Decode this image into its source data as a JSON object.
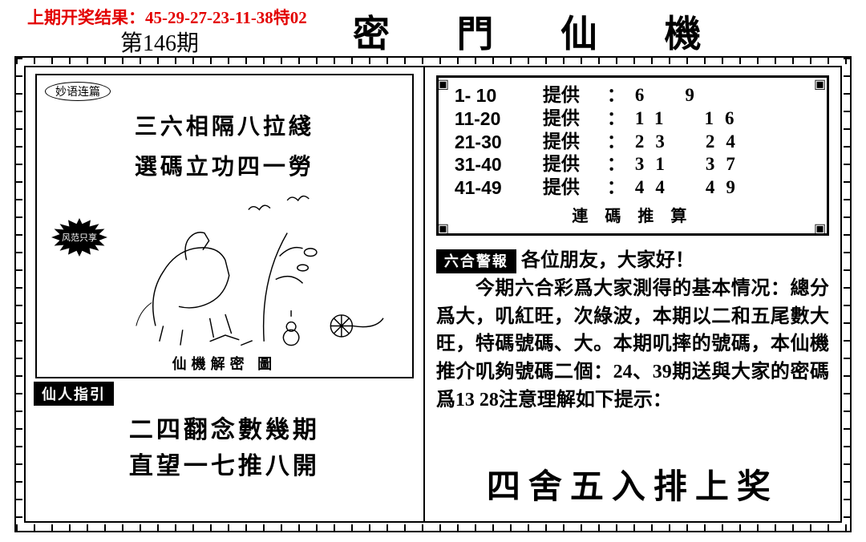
{
  "header": {
    "prev_result_label": "上期开奖结果：",
    "prev_result_numbers": "45-29-27-23-11-38特02",
    "issue": "第146期",
    "title": "密 門 仙 機"
  },
  "left": {
    "pill_label": "妙语连篇",
    "poem_line1": "三六相隔八拉綫",
    "poem_line2": "選碼立功四一勞",
    "starburst_label": "风范只享",
    "drawing_caption": "仙機解密 圖",
    "guide_tab": "仙人指引",
    "bottom_line1": "二四翻念數幾期",
    "bottom_line2": "直望一七推八開"
  },
  "right": {
    "table_provide_label": "提供",
    "rows": [
      {
        "range": "1- 10",
        "n1": "6",
        "n2": "9"
      },
      {
        "range": "11-20",
        "n1": "11",
        "n2": "16"
      },
      {
        "range": "21-30",
        "n1": "23",
        "n2": "24"
      },
      {
        "range": "31-40",
        "n1": "31",
        "n2": "37"
      },
      {
        "range": "41-49",
        "n1": "44",
        "n2": "49"
      }
    ],
    "table_caption": "連 碼 推 算",
    "alert_tab": "六合警報",
    "greeting": "各位朋友，大家好！",
    "body": "　　今期六合彩爲大家測得的基本情况：總分爲大，叽紅旺，次綠波，本期以二和五尾數大旺，特碼號碼、大。本期叽摔的號碼，本仙機推介叽夠號碼二個：24、39期送與大家的密碼爲13 28注意理解如下提示：",
    "banner": "四舍五入排上奖"
  },
  "colors": {
    "red": "#e30000",
    "black": "#000000",
    "bg": "#ffffff"
  }
}
